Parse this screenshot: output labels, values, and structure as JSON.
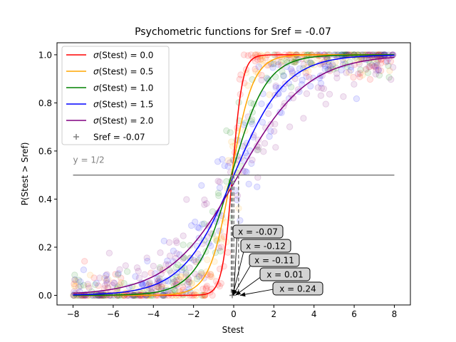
{
  "chart_data": {
    "type": "line",
    "title": "Psychometric functions for Sref = -0.07",
    "xlabel": "Stest",
    "ylabel": "P(Stest > Sref)",
    "xlim": [
      -8.8,
      8.8
    ],
    "ylim": [
      -0.04,
      1.05
    ],
    "xticks": [
      -8,
      -6,
      -4,
      -2,
      0,
      2,
      4,
      6,
      8
    ],
    "yticks": [
      0.0,
      0.2,
      0.4,
      0.6,
      0.8,
      1.0
    ],
    "xtick_labels": [
      "−8",
      "−6",
      "−4",
      "−2",
      "0",
      "2",
      "4",
      "6",
      "8"
    ],
    "ytick_labels": [
      "0.0",
      "0.2",
      "0.4",
      "0.6",
      "0.8",
      "1.0"
    ],
    "grid": false,
    "legend_position": "top-left",
    "sref": -0.07,
    "series": [
      {
        "name": "σ(Stest) = 0.0",
        "legend": {
          "pre": "",
          "sym": "σ",
          "post": "(Stest) = 0.0"
        },
        "color": "#ff0000",
        "pse": -0.07,
        "slope": 4.0
      },
      {
        "name": "σ(Stest) = 0.5",
        "legend": {
          "pre": "",
          "sym": "σ",
          "post": "(Stest) = 0.5"
        },
        "color": "#ffa500",
        "pse": -0.12,
        "slope": 1.85
      },
      {
        "name": "σ(Stest) = 1.0",
        "legend": {
          "pre": "",
          "sym": "σ",
          "post": "(Stest) = 1.0"
        },
        "color": "#008000",
        "pse": -0.11,
        "slope": 1.15
      },
      {
        "name": "σ(Stest) = 1.5",
        "legend": {
          "pre": "",
          "sym": "σ",
          "post": "(Stest) = 1.5"
        },
        "color": "#0000ff",
        "pse": 0.01,
        "slope": 0.78
      },
      {
        "name": "σ(Stest) = 2.0",
        "legend": {
          "pre": "",
          "sym": "σ",
          "post": "(Stest) = 2.0"
        },
        "color": "#800080",
        "pse": 0.24,
        "slope": 0.58
      }
    ],
    "sref_legend": "Sref = -0.07",
    "reference_line": {
      "y": 0.5,
      "x_range": [
        -8,
        8
      ],
      "label": "y = 1/2",
      "color": "#808080"
    },
    "annotations": [
      {
        "text": "x = -0.07",
        "x": -0.07
      },
      {
        "text": "x = -0.12",
        "x": -0.12
      },
      {
        "text": "x = -0.11",
        "x": -0.11
      },
      {
        "text": "x = 0.01",
        "x": 0.01
      },
      {
        "text": "x = 0.24",
        "x": 0.24
      }
    ]
  }
}
